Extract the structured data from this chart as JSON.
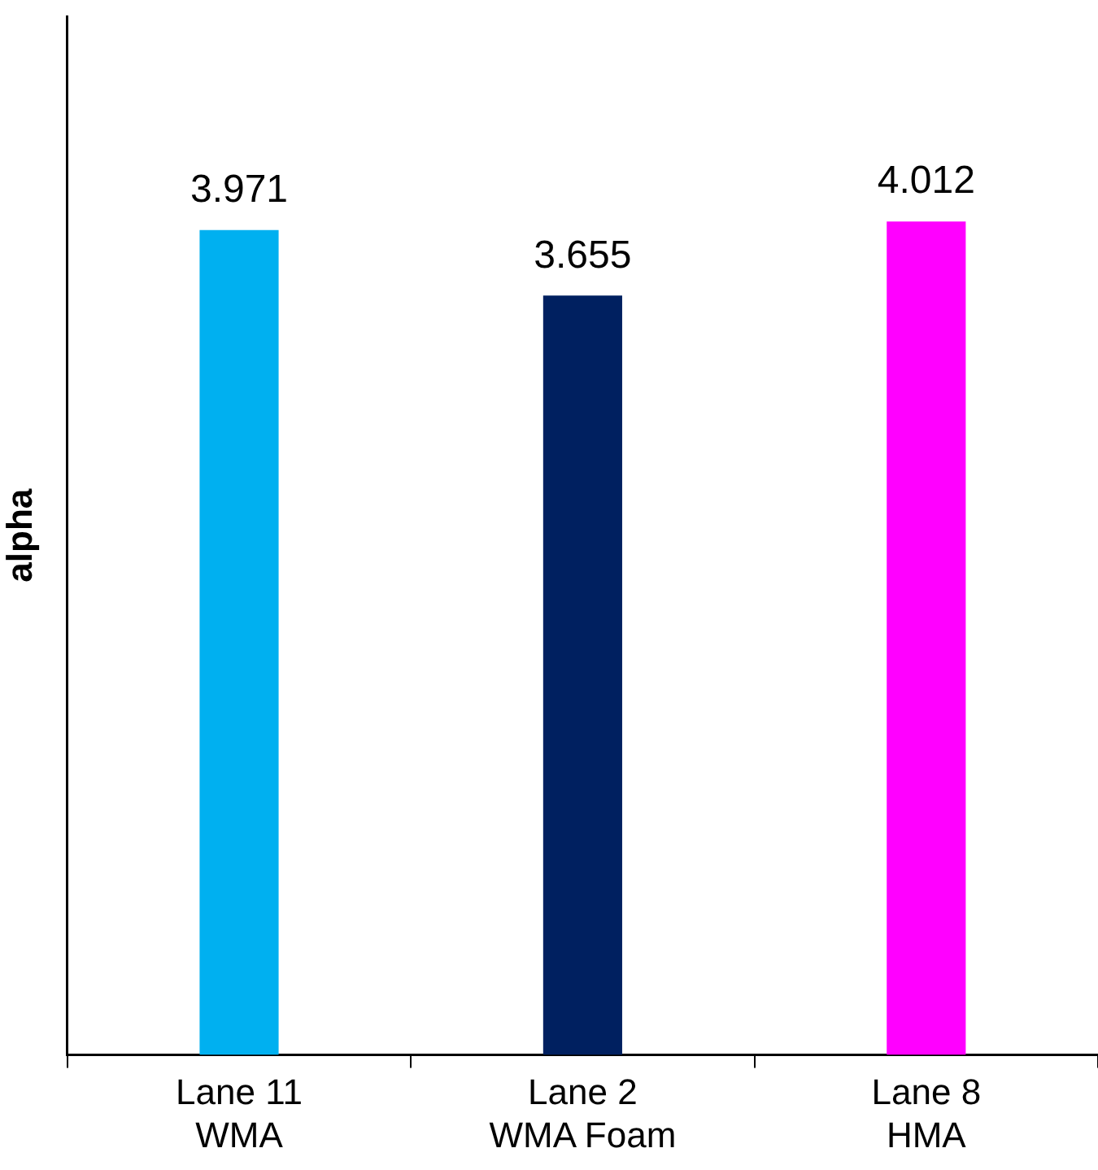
{
  "chart_data": {
    "type": "bar",
    "ylabel": "alpha",
    "categories": [
      "Lane 11\nWMA",
      "Lane 2\nWMA Foam",
      "Lane 8\nHMA"
    ],
    "colors": [
      "#00b0f0",
      "#002060",
      "#ff00ff"
    ],
    "values": [
      3.971,
      3.655,
      4.012
    ],
    "ylim": [
      0,
      5
    ],
    "tick_labels": "x",
    "data_labels": true,
    "legend": false
  }
}
